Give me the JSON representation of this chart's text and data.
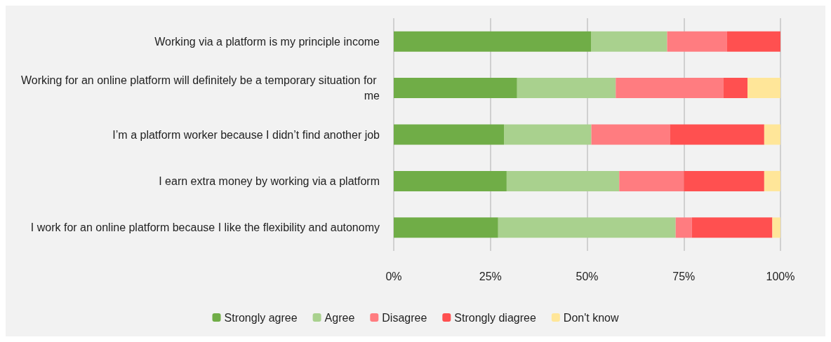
{
  "chart_data": {
    "type": "bar",
    "orientation": "horizontal",
    "stacked": true,
    "categories": [
      "Working via a platform is my principle income",
      "Working for an online platform will definitely be a temporary situation for me",
      "I’m a platform worker because I didn’t find another job",
      "I earn extra money by working via a platform",
      "I work for an online platform because I like the flexibility and autonomy"
    ],
    "series": [
      {
        "name": "Strongly agree",
        "color": "#70ad47",
        "values": [
          51,
          31.9,
          28.5,
          29.2,
          27.0
        ]
      },
      {
        "name": "Agree",
        "color": "#a9d18e",
        "values": [
          19.7,
          25.5,
          22.6,
          29.1,
          45.9
        ]
      },
      {
        "name": "Disagree",
        "color": "#ff7c80",
        "values": [
          15.5,
          27.8,
          20.3,
          16.7,
          4.2
        ]
      },
      {
        "name": "Strongly diagree",
        "color": "#ff5050",
        "values": [
          13.8,
          6.3,
          24.4,
          20.8,
          20.8
        ]
      },
      {
        "name": "Don't know",
        "color": "#ffe699",
        "values": [
          0,
          8.5,
          4.2,
          4.2,
          2.1
        ]
      }
    ],
    "xlim": [
      0,
      100
    ],
    "xticks": [
      {
        "value": 0,
        "label": "0%"
      },
      {
        "value": 25,
        "label": "25%"
      },
      {
        "value": 50,
        "label": "50%"
      },
      {
        "value": 75,
        "label": "75%"
      },
      {
        "value": 100,
        "label": "100%"
      }
    ],
    "grid": "x",
    "legend": "bottom"
  }
}
